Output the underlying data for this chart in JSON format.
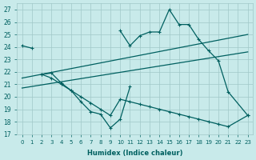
{
  "xlabel": "Humidex (Indice chaleur)",
  "xlim": [
    -0.5,
    23.5
  ],
  "ylim": [
    17,
    27.5
  ],
  "yticks": [
    17,
    18,
    19,
    20,
    21,
    22,
    23,
    24,
    25,
    26,
    27
  ],
  "xticks": [
    0,
    1,
    2,
    3,
    4,
    5,
    6,
    7,
    8,
    9,
    10,
    11,
    12,
    13,
    14,
    15,
    16,
    17,
    18,
    19,
    20,
    21,
    22,
    23
  ],
  "bg_color": "#c8eaea",
  "grid_color": "#a0c8c8",
  "line_color": "#006060",
  "trend1_x": [
    0,
    23
  ],
  "trend1_y": [
    21.5,
    25.0
  ],
  "trend2_x": [
    0,
    23
  ],
  "trend2_y": [
    20.7,
    23.6
  ],
  "curve2_x": [
    2,
    3,
    4,
    5,
    6,
    7,
    8,
    9,
    10,
    11
  ],
  "curve2_y": [
    21.8,
    21.9,
    21.1,
    20.5,
    19.6,
    18.8,
    18.6,
    17.5,
    18.2,
    20.8
  ],
  "curve3_x": [
    10,
    11,
    12,
    13,
    14,
    15,
    16,
    17,
    18,
    19,
    20,
    21,
    23
  ],
  "curve3_y": [
    25.3,
    24.1,
    24.9,
    25.2,
    25.2,
    27.0,
    25.8,
    25.8,
    24.6,
    23.7,
    22.9,
    20.4,
    18.5
  ],
  "curve4_x": [
    2,
    3,
    4,
    5,
    6,
    7,
    8,
    9,
    10,
    11,
    12,
    13,
    14,
    15,
    16,
    17,
    18,
    19,
    20,
    21,
    23
  ],
  "curve4_y": [
    21.8,
    21.5,
    21.0,
    20.5,
    20.0,
    19.5,
    19.0,
    18.5,
    19.8,
    19.6,
    19.4,
    19.2,
    19.0,
    18.8,
    18.6,
    18.4,
    18.2,
    18.0,
    17.8,
    17.6,
    18.5
  ]
}
